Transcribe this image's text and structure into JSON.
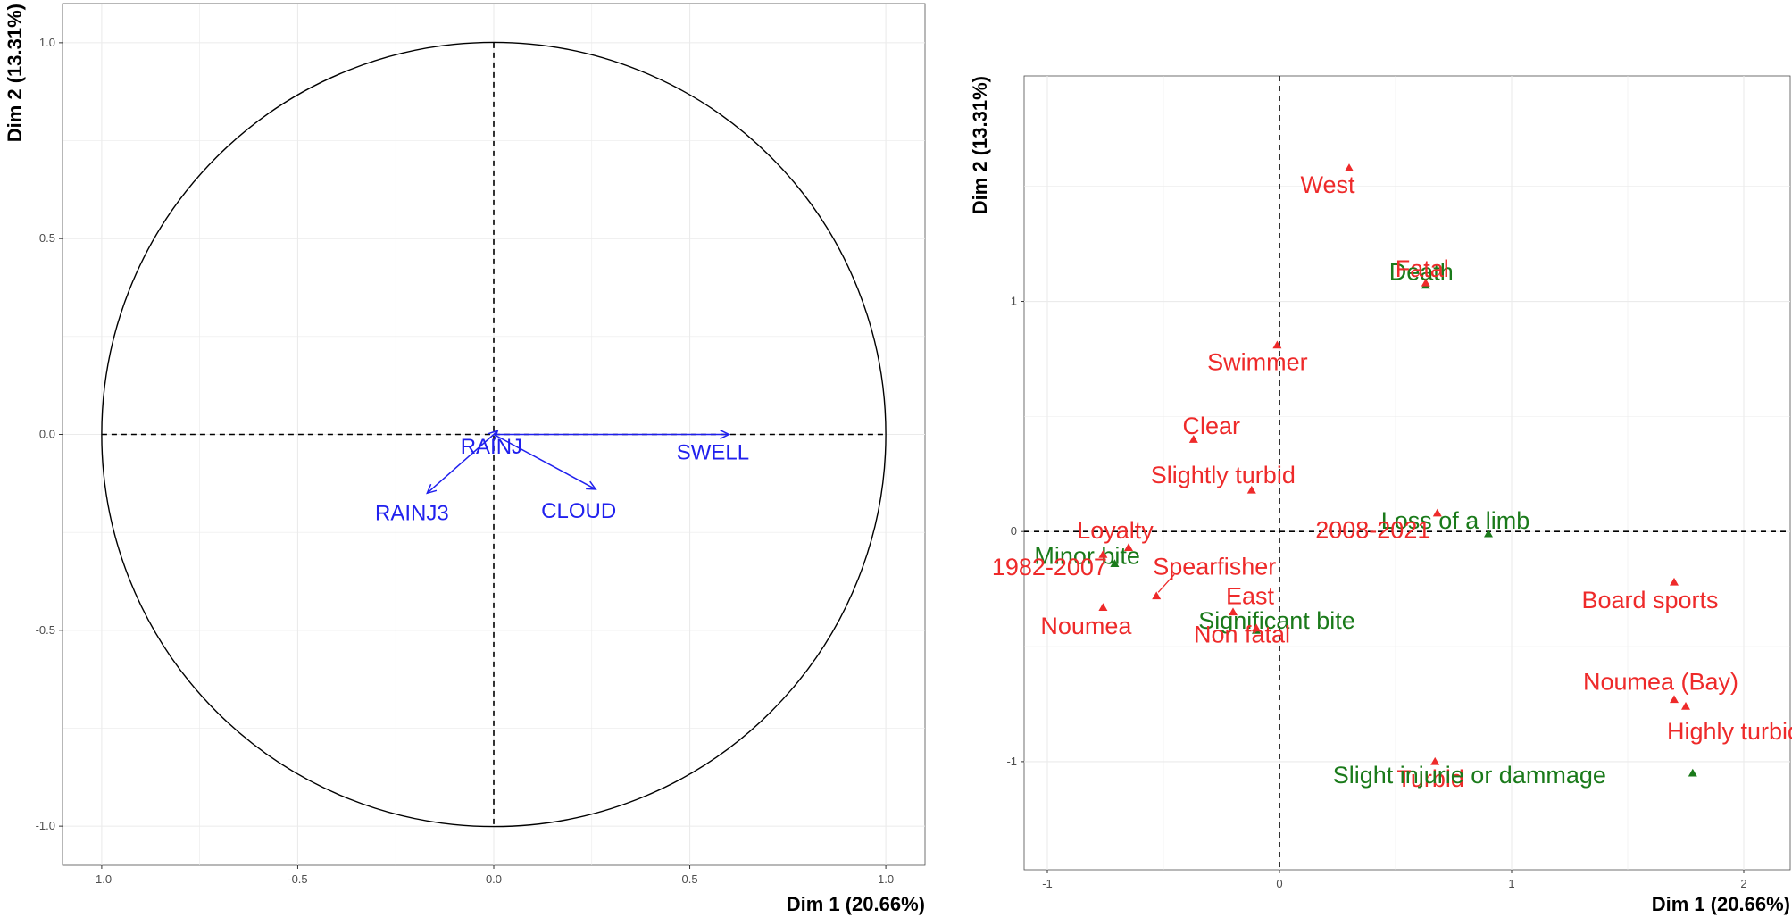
{
  "chart_data": [
    {
      "type": "scatter",
      "subtype": "variables-correlation-circle",
      "xlabel": "Dim 1 (20.66%)",
      "ylabel": "Dim 2 (13.31%)",
      "xlim": [
        -1.1,
        1.1
      ],
      "ylim": [
        -1.1,
        1.1
      ],
      "xticks": [
        -1.0,
        -0.5,
        0.0,
        0.5,
        1.0
      ],
      "yticks": [
        -1.0,
        -0.5,
        0.0,
        0.5,
        1.0
      ],
      "xtick_labels": [
        "-1.0",
        "-0.5",
        "0.0",
        "0.5",
        "1.0"
      ],
      "ytick_labels": [
        "-1.0",
        "-0.5",
        "0.0",
        "0.5",
        "1.0"
      ],
      "grid": true,
      "unit_circle": true,
      "arrow_color": "#2020ee",
      "variables": [
        {
          "name": "RAINJ",
          "x": 0.01,
          "y": 0.01
        },
        {
          "name": "SWELL",
          "x": 0.6,
          "y": 0.0
        },
        {
          "name": "RAINJ3",
          "x": -0.17,
          "y": -0.15
        },
        {
          "name": "CLOUD",
          "x": 0.26,
          "y": -0.14
        }
      ]
    },
    {
      "type": "scatter",
      "subtype": "categories-map",
      "xlabel": "Dim 1 (20.66%)",
      "ylabel": "Dim 2 (13.31%)",
      "xlim": [
        -1.1,
        2.2
      ],
      "ylim": [
        -1.47,
        1.98
      ],
      "xticks": [
        -1,
        0,
        1,
        2
      ],
      "yticks": [
        -1,
        0,
        1
      ],
      "xtick_labels": [
        "-1",
        "0",
        "1",
        "2"
      ],
      "ytick_labels": [
        "-1",
        "0",
        "1"
      ],
      "grid": true,
      "colors": {
        "supplementary": "#ee2a2a",
        "active": "#1a7a1a"
      },
      "points": [
        {
          "label": "West",
          "group": "supplementary",
          "x": 0.3,
          "y": 1.58
        },
        {
          "label": "Death",
          "group": "active",
          "x": 0.63,
          "y": 1.07
        },
        {
          "label": "Fatal",
          "group": "supplementary",
          "x": 0.63,
          "y": 1.08
        },
        {
          "label": "Swimmer",
          "group": "supplementary",
          "x": -0.01,
          "y": 0.81
        },
        {
          "label": "Clear",
          "group": "supplementary",
          "x": -0.37,
          "y": 0.4
        },
        {
          "label": "Slightly turbid",
          "group": "supplementary",
          "x": -0.12,
          "y": 0.18
        },
        {
          "label": "Loss of a limb",
          "group": "active",
          "x": 0.9,
          "y": -0.01
        },
        {
          "label": "2008-2021",
          "group": "supplementary",
          "x": 0.68,
          "y": 0.08
        },
        {
          "label": "Loyalty",
          "group": "supplementary",
          "x": -0.65,
          "y": -0.07
        },
        {
          "label": "Minor bite",
          "group": "active",
          "x": -0.71,
          "y": -0.14
        },
        {
          "label": "1982-2007",
          "group": "supplementary",
          "x": -0.76,
          "y": -0.1
        },
        {
          "label": "Spearfisher",
          "group": "supplementary",
          "x": -0.53,
          "y": -0.28
        },
        {
          "label": "East",
          "group": "supplementary",
          "x": -0.2,
          "y": -0.35
        },
        {
          "label": "Significant bite",
          "group": "active",
          "x": -0.1,
          "y": -0.43
        },
        {
          "label": "Non fatal",
          "group": "supplementary",
          "x": -0.1,
          "y": -0.42
        },
        {
          "label": "Noumea",
          "group": "supplementary",
          "x": -0.76,
          "y": -0.33
        },
        {
          "label": "Board sports",
          "group": "supplementary",
          "x": 1.7,
          "y": -0.22
        },
        {
          "label": "Noumea (Bay)",
          "group": "supplementary",
          "x": 1.7,
          "y": -0.73
        },
        {
          "label": "Highly turbid",
          "group": "supplementary",
          "x": 1.75,
          "y": -0.76
        },
        {
          "label": "Turbid",
          "group": "supplementary",
          "x": 0.67,
          "y": -1.0
        },
        {
          "label": "Slight injurie or dammage",
          "group": "active",
          "x": 1.78,
          "y": -1.05
        }
      ]
    }
  ]
}
